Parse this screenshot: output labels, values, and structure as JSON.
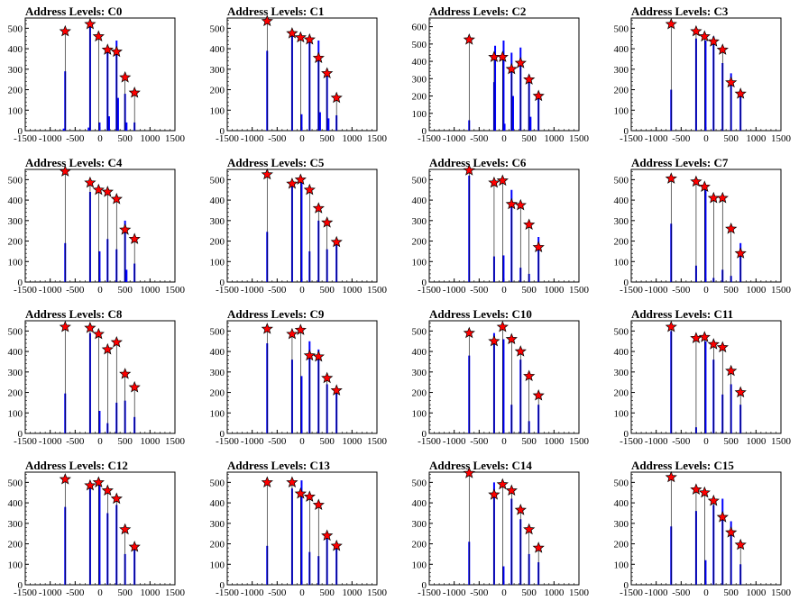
{
  "colors": {
    "hist": "#0000ff",
    "marker": "#ff0000",
    "frame": "#000000"
  },
  "chart_data": [
    {
      "type": "bar",
      "title": "Address Levels: C0",
      "xlim": [
        -1500,
        1500
      ],
      "ylim": [
        0,
        550
      ],
      "yticks": [
        0,
        100,
        200,
        300,
        400,
        500
      ],
      "xticks": [
        -1500,
        -1000,
        -500,
        0,
        500,
        1000,
        1500
      ],
      "grid": false,
      "bars": [
        [
          -700,
          290
        ],
        [
          -730,
          10
        ],
        [
          -200,
          520
        ],
        [
          -230,
          15
        ],
        [
          -10,
          40
        ],
        [
          150,
          410
        ],
        [
          180,
          70
        ],
        [
          330,
          440
        ],
        [
          360,
          160
        ],
        [
          500,
          180
        ],
        [
          530,
          40
        ],
        [
          690,
          40
        ]
      ],
      "peaks": [
        [
          -700,
          485
        ],
        [
          -200,
          520
        ],
        [
          -30,
          460
        ],
        [
          150,
          395
        ],
        [
          330,
          385
        ],
        [
          500,
          260
        ],
        [
          690,
          185
        ]
      ]
    },
    {
      "type": "bar",
      "title": "Address Levels: C1",
      "xlim": [
        -1500,
        1500
      ],
      "ylim": [
        0,
        550
      ],
      "yticks": [
        0,
        100,
        200,
        300,
        400,
        500
      ],
      "xticks": [
        -1500,
        -1000,
        -500,
        0,
        500,
        1000,
        1500
      ],
      "grid": false,
      "bars": [
        [
          -700,
          390
        ],
        [
          -200,
          470
        ],
        [
          -10,
          80
        ],
        [
          150,
          460
        ],
        [
          330,
          440
        ],
        [
          360,
          90
        ],
        [
          500,
          300
        ],
        [
          530,
          60
        ],
        [
          690,
          75
        ]
      ],
      "peaks": [
        [
          -700,
          535
        ],
        [
          -200,
          475
        ],
        [
          -30,
          455
        ],
        [
          150,
          445
        ],
        [
          330,
          355
        ],
        [
          500,
          280
        ],
        [
          690,
          160
        ]
      ]
    },
    {
      "type": "bar",
      "title": "Address Levels: C2",
      "xlim": [
        -1500,
        1500
      ],
      "ylim": [
        0,
        650
      ],
      "yticks": [
        0,
        100,
        200,
        300,
        400,
        500,
        600
      ],
      "xticks": [
        -1500,
        -1000,
        -500,
        0,
        500,
        1000,
        1500
      ],
      "grid": false,
      "bars": [
        [
          -700,
          60
        ],
        [
          -200,
          280
        ],
        [
          -180,
          490
        ],
        [
          -10,
          520
        ],
        [
          10,
          40
        ],
        [
          150,
          450
        ],
        [
          180,
          200
        ],
        [
          330,
          480
        ],
        [
          500,
          320
        ],
        [
          530,
          80
        ],
        [
          690,
          220
        ]
      ],
      "peaks": [
        [
          -700,
          525
        ],
        [
          -200,
          425
        ],
        [
          -30,
          425
        ],
        [
          150,
          355
        ],
        [
          330,
          390
        ],
        [
          500,
          295
        ],
        [
          690,
          200
        ]
      ]
    },
    {
      "type": "bar",
      "title": "Address Levels: C3",
      "xlim": [
        -1500,
        1500
      ],
      "ylim": [
        0,
        550
      ],
      "yticks": [
        0,
        100,
        200,
        300,
        400,
        500
      ],
      "xticks": [
        -1500,
        -1000,
        -500,
        0,
        500,
        1000,
        1500
      ],
      "grid": false,
      "bars": [
        [
          -700,
          200
        ],
        [
          -200,
          450
        ],
        [
          -10,
          440
        ],
        [
          150,
          460
        ],
        [
          330,
          330
        ],
        [
          500,
          280
        ],
        [
          690,
          170
        ]
      ],
      "peaks": [
        [
          -700,
          520
        ],
        [
          -200,
          485
        ],
        [
          -30,
          460
        ],
        [
          150,
          435
        ],
        [
          330,
          395
        ],
        [
          500,
          235
        ],
        [
          690,
          180
        ]
      ]
    },
    {
      "type": "bar",
      "title": "Address Levels: C4",
      "xlim": [
        -1500,
        1500
      ],
      "ylim": [
        0,
        550
      ],
      "yticks": [
        0,
        100,
        200,
        300,
        400,
        500
      ],
      "xticks": [
        -1500,
        -1000,
        -500,
        0,
        500,
        1000,
        1500
      ],
      "grid": false,
      "bars": [
        [
          -700,
          190
        ],
        [
          -200,
          440
        ],
        [
          -10,
          150
        ],
        [
          150,
          210
        ],
        [
          330,
          160
        ],
        [
          500,
          300
        ],
        [
          530,
          60
        ],
        [
          690,
          90
        ]
      ],
      "peaks": [
        [
          -700,
          540
        ],
        [
          -200,
          485
        ],
        [
          -30,
          450
        ],
        [
          150,
          440
        ],
        [
          330,
          405
        ],
        [
          500,
          255
        ],
        [
          690,
          210
        ]
      ]
    },
    {
      "type": "bar",
      "title": "Address Levels: C5",
      "xlim": [
        -1500,
        1500
      ],
      "ylim": [
        0,
        550
      ],
      "yticks": [
        0,
        100,
        200,
        300,
        400,
        500
      ],
      "xticks": [
        -1500,
        -1000,
        -500,
        0,
        500,
        1000,
        1500
      ],
      "grid": false,
      "bars": [
        [
          -700,
          245
        ],
        [
          -200,
          470
        ],
        [
          -10,
          490
        ],
        [
          150,
          150
        ],
        [
          330,
          300
        ],
        [
          500,
          160
        ],
        [
          690,
          180
        ]
      ],
      "peaks": [
        [
          -700,
          525
        ],
        [
          -200,
          480
        ],
        [
          -30,
          500
        ],
        [
          150,
          450
        ],
        [
          330,
          360
        ],
        [
          500,
          290
        ],
        [
          690,
          195
        ]
      ]
    },
    {
      "type": "bar",
      "title": "Address Levels: C6",
      "xlim": [
        -1500,
        1500
      ],
      "ylim": [
        0,
        550
      ],
      "yticks": [
        0,
        100,
        200,
        300,
        400,
        500
      ],
      "xticks": [
        -1500,
        -1000,
        -500,
        0,
        500,
        1000,
        1500
      ],
      "grid": false,
      "bars": [
        [
          -700,
          520
        ],
        [
          -200,
          125
        ],
        [
          -10,
          130
        ],
        [
          150,
          450
        ],
        [
          330,
          70
        ],
        [
          500,
          40
        ],
        [
          690,
          220
        ]
      ],
      "peaks": [
        [
          -700,
          545
        ],
        [
          -200,
          485
        ],
        [
          -30,
          495
        ],
        [
          150,
          380
        ],
        [
          330,
          375
        ],
        [
          500,
          280
        ],
        [
          690,
          170
        ]
      ]
    },
    {
      "type": "bar",
      "title": "Address Levels: C7",
      "xlim": [
        -1500,
        1500
      ],
      "ylim": [
        0,
        550
      ],
      "yticks": [
        0,
        100,
        200,
        300,
        400,
        500
      ],
      "xticks": [
        -1500,
        -1000,
        -500,
        0,
        500,
        1000,
        1500
      ],
      "grid": false,
      "bars": [
        [
          -700,
          285
        ],
        [
          -200,
          80
        ],
        [
          -10,
          450
        ],
        [
          150,
          20
        ],
        [
          330,
          60
        ],
        [
          500,
          30
        ],
        [
          690,
          190
        ]
      ],
      "peaks": [
        [
          -700,
          505
        ],
        [
          -200,
          490
        ],
        [
          -30,
          465
        ],
        [
          150,
          410
        ],
        [
          330,
          410
        ],
        [
          500,
          260
        ],
        [
          690,
          140
        ]
      ]
    },
    {
      "type": "bar",
      "title": "Address Levels: C8",
      "xlim": [
        -1500,
        1500
      ],
      "ylim": [
        0,
        550
      ],
      "yticks": [
        0,
        100,
        200,
        300,
        400,
        500
      ],
      "xticks": [
        -1500,
        -1000,
        -500,
        0,
        500,
        1000,
        1500
      ],
      "grid": false,
      "bars": [
        [
          -700,
          195
        ],
        [
          -200,
          490
        ],
        [
          -10,
          110
        ],
        [
          150,
          50
        ],
        [
          330,
          150
        ],
        [
          500,
          160
        ],
        [
          690,
          80
        ]
      ],
      "peaks": [
        [
          -700,
          520
        ],
        [
          -200,
          515
        ],
        [
          -30,
          485
        ],
        [
          150,
          410
        ],
        [
          330,
          445
        ],
        [
          500,
          290
        ],
        [
          690,
          225
        ]
      ]
    },
    {
      "type": "bar",
      "title": "Address Levels: C9",
      "xlim": [
        -1500,
        1500
      ],
      "ylim": [
        0,
        550
      ],
      "yticks": [
        0,
        100,
        200,
        300,
        400,
        500
      ],
      "xticks": [
        -1500,
        -1000,
        -500,
        0,
        500,
        1000,
        1500
      ],
      "grid": false,
      "bars": [
        [
          -700,
          440
        ],
        [
          -200,
          360
        ],
        [
          -10,
          280
        ],
        [
          150,
          450
        ],
        [
          330,
          410
        ],
        [
          500,
          240
        ],
        [
          690,
          200
        ]
      ],
      "peaks": [
        [
          -700,
          510
        ],
        [
          -200,
          485
        ],
        [
          -30,
          505
        ],
        [
          150,
          380
        ],
        [
          330,
          375
        ],
        [
          500,
          270
        ],
        [
          690,
          210
        ]
      ]
    },
    {
      "type": "bar",
      "title": "Address Levels: C10",
      "xlim": [
        -1500,
        1500
      ],
      "ylim": [
        0,
        550
      ],
      "yticks": [
        0,
        100,
        200,
        300,
        400,
        500
      ],
      "xticks": [
        -1500,
        -1000,
        -500,
        0,
        500,
        1000,
        1500
      ],
      "grid": false,
      "bars": [
        [
          -700,
          380
        ],
        [
          -200,
          490
        ],
        [
          -10,
          460
        ],
        [
          150,
          140
        ],
        [
          330,
          360
        ],
        [
          500,
          60
        ],
        [
          690,
          140
        ]
      ],
      "peaks": [
        [
          -700,
          490
        ],
        [
          -200,
          450
        ],
        [
          -30,
          520
        ],
        [
          150,
          460
        ],
        [
          330,
          400
        ],
        [
          500,
          280
        ],
        [
          690,
          185
        ]
      ]
    },
    {
      "type": "bar",
      "title": "Address Levels: C11",
      "xlim": [
        -1500,
        1500
      ],
      "ylim": [
        0,
        550
      ],
      "yticks": [
        0,
        100,
        200,
        300,
        400,
        500
      ],
      "xticks": [
        -1500,
        -1000,
        -500,
        0,
        500,
        1000,
        1500
      ],
      "grid": false,
      "bars": [
        [
          -700,
          500
        ],
        [
          -200,
          30
        ],
        [
          -10,
          450
        ],
        [
          150,
          360
        ],
        [
          330,
          190
        ],
        [
          500,
          240
        ],
        [
          690,
          140
        ]
      ],
      "peaks": [
        [
          -700,
          520
        ],
        [
          -200,
          465
        ],
        [
          -30,
          470
        ],
        [
          150,
          435
        ],
        [
          330,
          420
        ],
        [
          500,
          305
        ],
        [
          690,
          200
        ]
      ]
    },
    {
      "type": "bar",
      "title": "Address Levels: C12",
      "xlim": [
        -1500,
        1500
      ],
      "ylim": [
        0,
        550
      ],
      "yticks": [
        0,
        100,
        200,
        300,
        400,
        500
      ],
      "xticks": [
        -1500,
        -1000,
        -500,
        0,
        500,
        1000,
        1500
      ],
      "grid": false,
      "bars": [
        [
          -700,
          380
        ],
        [
          -200,
          470
        ],
        [
          -10,
          500
        ],
        [
          150,
          350
        ],
        [
          330,
          390
        ],
        [
          500,
          150
        ],
        [
          690,
          170
        ]
      ],
      "peaks": [
        [
          -700,
          515
        ],
        [
          -200,
          485
        ],
        [
          -30,
          500
        ],
        [
          150,
          460
        ],
        [
          330,
          420
        ],
        [
          500,
          270
        ],
        [
          690,
          185
        ]
      ]
    },
    {
      "type": "bar",
      "title": "Address Levels: C13",
      "xlim": [
        -1500,
        1500
      ],
      "ylim": [
        0,
        550
      ],
      "yticks": [
        0,
        100,
        200,
        300,
        400,
        500
      ],
      "xticks": [
        -1500,
        -1000,
        -500,
        0,
        500,
        1000,
        1500
      ],
      "grid": false,
      "bars": [
        [
          -700,
          190
        ],
        [
          -200,
          470
        ],
        [
          -10,
          510
        ],
        [
          150,
          160
        ],
        [
          330,
          140
        ],
        [
          500,
          230
        ],
        [
          690,
          180
        ]
      ],
      "peaks": [
        [
          -700,
          500
        ],
        [
          -200,
          500
        ],
        [
          -30,
          445
        ],
        [
          150,
          430
        ],
        [
          330,
          390
        ],
        [
          500,
          240
        ],
        [
          690,
          190
        ]
      ]
    },
    {
      "type": "bar",
      "title": "Address Levels: C14",
      "xlim": [
        -1500,
        1500
      ],
      "ylim": [
        0,
        550
      ],
      "yticks": [
        0,
        100,
        200,
        300,
        400,
        500
      ],
      "xticks": [
        -1500,
        -1000,
        -500,
        0,
        500,
        1000,
        1500
      ],
      "grid": false,
      "bars": [
        [
          -700,
          210
        ],
        [
          -200,
          500
        ],
        [
          -10,
          90
        ],
        [
          150,
          420
        ],
        [
          330,
          320
        ],
        [
          500,
          150
        ],
        [
          690,
          110
        ]
      ],
      "peaks": [
        [
          -700,
          545
        ],
        [
          -200,
          440
        ],
        [
          -30,
          490
        ],
        [
          150,
          460
        ],
        [
          330,
          365
        ],
        [
          500,
          270
        ],
        [
          690,
          180
        ]
      ]
    },
    {
      "type": "bar",
      "title": "Address Levels: C15",
      "xlim": [
        -1500,
        1500
      ],
      "ylim": [
        0,
        550
      ],
      "yticks": [
        0,
        100,
        200,
        300,
        400,
        500
      ],
      "xticks": [
        -1500,
        -1000,
        -500,
        0,
        500,
        1000,
        1500
      ],
      "grid": false,
      "bars": [
        [
          -700,
          285
        ],
        [
          -200,
          360
        ],
        [
          -10,
          120
        ],
        [
          150,
          390
        ],
        [
          330,
          420
        ],
        [
          500,
          310
        ],
        [
          690,
          100
        ]
      ],
      "peaks": [
        [
          -700,
          525
        ],
        [
          -200,
          465
        ],
        [
          -30,
          450
        ],
        [
          150,
          410
        ],
        [
          330,
          330
        ],
        [
          500,
          255
        ],
        [
          690,
          195
        ]
      ]
    }
  ]
}
